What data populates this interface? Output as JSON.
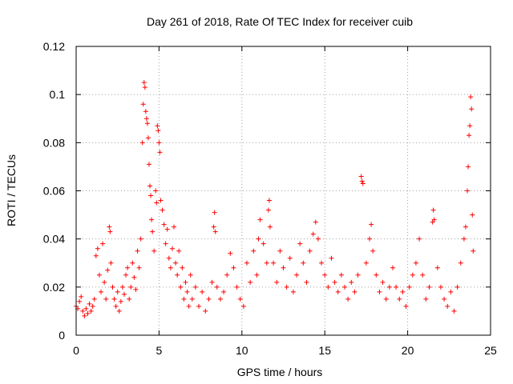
{
  "chart_data": {
    "type": "scatter",
    "title": "Day 261 of 2018, Rate Of TEC Index for receiver cuib",
    "xlabel": "GPS time / hours",
    "ylabel": "ROTI / TECUs",
    "xlim": [
      0,
      25
    ],
    "ylim": [
      0,
      0.12
    ],
    "x_ticks": [
      "0",
      "5",
      "10",
      "15",
      "20",
      "25"
    ],
    "y_ticks": [
      "0",
      "0.02",
      "0.04",
      "0.06",
      "0.08",
      "0.1",
      "0.12"
    ],
    "grid": true,
    "marker": "+",
    "color": "#ff0000",
    "series": [
      {
        "points": [
          [
            0.0,
            0.012
          ],
          [
            0.1,
            0.011
          ],
          [
            0.2,
            0.014
          ],
          [
            0.3,
            0.016
          ],
          [
            0.4,
            0.01
          ],
          [
            0.5,
            0.008
          ],
          [
            0.6,
            0.011
          ],
          [
            0.7,
            0.009
          ],
          [
            0.8,
            0.013
          ],
          [
            0.9,
            0.01
          ],
          [
            1.0,
            0.012
          ],
          [
            1.1,
            0.015
          ],
          [
            1.2,
            0.033
          ],
          [
            1.3,
            0.036
          ],
          [
            1.4,
            0.025
          ],
          [
            1.5,
            0.018
          ],
          [
            1.6,
            0.038
          ],
          [
            1.7,
            0.022
          ],
          [
            1.8,
            0.015
          ],
          [
            1.9,
            0.027
          ],
          [
            2.0,
            0.045
          ],
          [
            2.05,
            0.043
          ],
          [
            2.1,
            0.03
          ],
          [
            2.2,
            0.02
          ],
          [
            2.3,
            0.015
          ],
          [
            2.4,
            0.012
          ],
          [
            2.5,
            0.018
          ],
          [
            2.6,
            0.01
          ],
          [
            2.7,
            0.014
          ],
          [
            2.8,
            0.02
          ],
          [
            2.9,
            0.017
          ],
          [
            3.0,
            0.025
          ],
          [
            3.1,
            0.028
          ],
          [
            3.2,
            0.015
          ],
          [
            3.3,
            0.02
          ],
          [
            3.4,
            0.03
          ],
          [
            3.5,
            0.024
          ],
          [
            3.6,
            0.019
          ],
          [
            3.7,
            0.035
          ],
          [
            3.8,
            0.028
          ],
          [
            3.9,
            0.04
          ],
          [
            4.0,
            0.08
          ],
          [
            4.05,
            0.096
          ],
          [
            4.1,
            0.105
          ],
          [
            4.15,
            0.103
          ],
          [
            4.2,
            0.093
          ],
          [
            4.25,
            0.09
          ],
          [
            4.3,
            0.088
          ],
          [
            4.35,
            0.082
          ],
          [
            4.4,
            0.071
          ],
          [
            4.45,
            0.062
          ],
          [
            4.5,
            0.058
          ],
          [
            4.55,
            0.048
          ],
          [
            4.6,
            0.043
          ],
          [
            4.7,
            0.035
          ],
          [
            4.8,
            0.06
          ],
          [
            4.85,
            0.055
          ],
          [
            4.9,
            0.087
          ],
          [
            4.95,
            0.085
          ],
          [
            5.0,
            0.08
          ],
          [
            5.05,
            0.076
          ],
          [
            5.1,
            0.056
          ],
          [
            5.2,
            0.052
          ],
          [
            5.3,
            0.046
          ],
          [
            5.4,
            0.038
          ],
          [
            5.5,
            0.044
          ],
          [
            5.6,
            0.032
          ],
          [
            5.7,
            0.028
          ],
          [
            5.8,
            0.036
          ],
          [
            5.9,
            0.045
          ],
          [
            6.0,
            0.03
          ],
          [
            6.1,
            0.025
          ],
          [
            6.2,
            0.035
          ],
          [
            6.3,
            0.02
          ],
          [
            6.4,
            0.028
          ],
          [
            6.5,
            0.015
          ],
          [
            6.6,
            0.022
          ],
          [
            6.7,
            0.018
          ],
          [
            6.8,
            0.012
          ],
          [
            6.9,
            0.025
          ],
          [
            7.0,
            0.015
          ],
          [
            7.2,
            0.02
          ],
          [
            7.4,
            0.012
          ],
          [
            7.6,
            0.018
          ],
          [
            7.8,
            0.01
          ],
          [
            8.0,
            0.015
          ],
          [
            8.2,
            0.022
          ],
          [
            8.3,
            0.045
          ],
          [
            8.35,
            0.051
          ],
          [
            8.4,
            0.043
          ],
          [
            8.5,
            0.02
          ],
          [
            8.7,
            0.015
          ],
          [
            8.9,
            0.018
          ],
          [
            9.1,
            0.025
          ],
          [
            9.3,
            0.034
          ],
          [
            9.5,
            0.028
          ],
          [
            9.7,
            0.02
          ],
          [
            9.9,
            0.015
          ],
          [
            10.1,
            0.012
          ],
          [
            10.3,
            0.03
          ],
          [
            10.5,
            0.022
          ],
          [
            10.7,
            0.035
          ],
          [
            10.9,
            0.025
          ],
          [
            11.0,
            0.04
          ],
          [
            11.1,
            0.048
          ],
          [
            11.3,
            0.038
          ],
          [
            11.5,
            0.03
          ],
          [
            11.6,
            0.052
          ],
          [
            11.65,
            0.056
          ],
          [
            11.7,
            0.045
          ],
          [
            11.9,
            0.03
          ],
          [
            12.1,
            0.022
          ],
          [
            12.3,
            0.035
          ],
          [
            12.5,
            0.028
          ],
          [
            12.7,
            0.02
          ],
          [
            12.9,
            0.032
          ],
          [
            13.1,
            0.018
          ],
          [
            13.3,
            0.025
          ],
          [
            13.5,
            0.038
          ],
          [
            13.7,
            0.03
          ],
          [
            13.9,
            0.022
          ],
          [
            14.1,
            0.035
          ],
          [
            14.3,
            0.042
          ],
          [
            14.45,
            0.047
          ],
          [
            14.6,
            0.04
          ],
          [
            14.8,
            0.03
          ],
          [
            15.0,
            0.025
          ],
          [
            15.2,
            0.02
          ],
          [
            15.4,
            0.032
          ],
          [
            15.6,
            0.022
          ],
          [
            15.8,
            0.018
          ],
          [
            16.0,
            0.025
          ],
          [
            16.2,
            0.02
          ],
          [
            16.4,
            0.015
          ],
          [
            16.6,
            0.022
          ],
          [
            16.8,
            0.018
          ],
          [
            17.0,
            0.025
          ],
          [
            17.2,
            0.066
          ],
          [
            17.25,
            0.064
          ],
          [
            17.3,
            0.063
          ],
          [
            17.5,
            0.03
          ],
          [
            17.7,
            0.04
          ],
          [
            17.8,
            0.046
          ],
          [
            17.9,
            0.035
          ],
          [
            18.1,
            0.025
          ],
          [
            18.3,
            0.018
          ],
          [
            18.5,
            0.022
          ],
          [
            18.7,
            0.015
          ],
          [
            18.9,
            0.02
          ],
          [
            19.1,
            0.028
          ],
          [
            19.3,
            0.02
          ],
          [
            19.5,
            0.015
          ],
          [
            19.7,
            0.018
          ],
          [
            19.9,
            0.012
          ],
          [
            20.1,
            0.02
          ],
          [
            20.3,
            0.025
          ],
          [
            20.5,
            0.03
          ],
          [
            20.7,
            0.04
          ],
          [
            20.9,
            0.025
          ],
          [
            21.1,
            0.015
          ],
          [
            21.3,
            0.02
          ],
          [
            21.5,
            0.047
          ],
          [
            21.55,
            0.052
          ],
          [
            21.6,
            0.048
          ],
          [
            21.8,
            0.028
          ],
          [
            22.0,
            0.02
          ],
          [
            22.2,
            0.015
          ],
          [
            22.4,
            0.012
          ],
          [
            22.6,
            0.018
          ],
          [
            22.8,
            0.01
          ],
          [
            23.0,
            0.02
          ],
          [
            23.2,
            0.03
          ],
          [
            23.4,
            0.04
          ],
          [
            23.5,
            0.045
          ],
          [
            23.6,
            0.06
          ],
          [
            23.65,
            0.07
          ],
          [
            23.7,
            0.083
          ],
          [
            23.75,
            0.087
          ],
          [
            23.8,
            0.099
          ],
          [
            23.85,
            0.094
          ],
          [
            23.9,
            0.05
          ],
          [
            23.95,
            0.035
          ]
        ]
      }
    ]
  }
}
